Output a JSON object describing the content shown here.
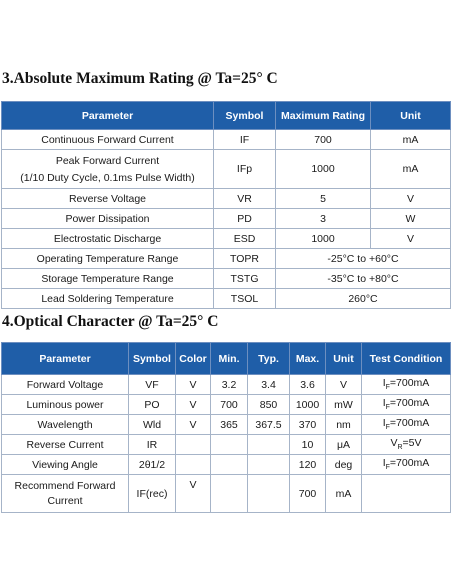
{
  "section1": {
    "title": "3.Absolute Maximum Rating @ Ta=25° C",
    "headers": [
      "Parameter",
      "Symbol",
      "Maximum Rating",
      "Unit"
    ],
    "rows": [
      {
        "parameter": "Continuous Forward Current",
        "symbol": "IF",
        "rating": "700",
        "unit": "mA"
      },
      {
        "parameter": "Peak Forward Current",
        "parameter_note": "(1/10 Duty Cycle, 0.1ms Pulse Width)",
        "symbol": "IFp",
        "rating": "1000",
        "unit": "mA"
      },
      {
        "parameter": "Reverse Voltage",
        "symbol": "VR",
        "rating": "5",
        "unit": "V"
      },
      {
        "parameter": "Power Dissipation",
        "symbol": "PD",
        "rating": "3",
        "unit": "W"
      },
      {
        "parameter": "Electrostatic Discharge",
        "symbol": "ESD",
        "rating": "1000",
        "unit": "V"
      },
      {
        "parameter": "Operating Temperature Range",
        "symbol": "TOPR",
        "rating": "-25°C to +60°C"
      },
      {
        "parameter": "Storage Temperature Range",
        "symbol": "TSTG",
        "rating": "-35°C to +80°C"
      },
      {
        "parameter": "Lead Soldering Temperature",
        "symbol": "TSOL",
        "rating": "260°C"
      }
    ]
  },
  "section2": {
    "title": "4.Optical Character @ Ta=25° C",
    "headers": [
      "Parameter",
      "Symbol",
      "Color",
      "Min.",
      "Typ.",
      "Max.",
      "Unit",
      "Test Condition"
    ],
    "rows": [
      {
        "parameter": "Forward Voltage",
        "symbol": "VF",
        "color": "V",
        "min": "3.2",
        "typ": "3.4",
        "max": "3.6",
        "unit": "V",
        "cond_var": "I",
        "cond_sub": "F",
        "cond_val": "=700mA"
      },
      {
        "parameter": "Luminous power",
        "symbol": "PO",
        "color": "V",
        "min": "700",
        "typ": "850",
        "max": "1000",
        "unit": "mW",
        "cond_var": "I",
        "cond_sub": "F",
        "cond_val": "=700mA"
      },
      {
        "parameter": "Wavelength",
        "symbol": "Wld",
        "color": "V",
        "min": "365",
        "typ": "367.5",
        "max": "370",
        "unit": "nm",
        "cond_var": "I",
        "cond_sub": "F",
        "cond_val": "=700mA"
      },
      {
        "parameter": "Reverse Current",
        "symbol": "IR",
        "color": "",
        "min": "",
        "typ": "",
        "max": "10",
        "unit": "μA",
        "cond_var": "V",
        "cond_sub": "R",
        "cond_val": "=5V"
      },
      {
        "parameter": "Viewing Angle",
        "symbol": "2θ1/2",
        "color": "",
        "min": "",
        "typ": "",
        "max": "120",
        "unit": "deg",
        "cond_var": "I",
        "cond_sub": "F",
        "cond_val": "=700mA"
      },
      {
        "parameter": "Recommend Forward",
        "parameter_line2": "Current",
        "symbol": "IF(rec)",
        "color": "V",
        "min": "",
        "typ": "",
        "max": "700",
        "unit": "mA",
        "cond_var": "",
        "cond_sub": "",
        "cond_val": ""
      }
    ]
  },
  "colors": {
    "header_bg": "#1f5ea8",
    "header_text": "#ffffff",
    "grid": "#a6b4c8"
  }
}
